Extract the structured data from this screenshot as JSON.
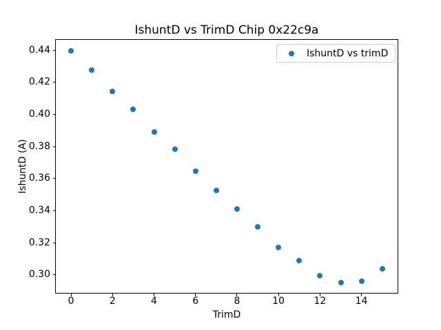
{
  "figure": {
    "background": "#ffffff",
    "text_color": "#000000"
  },
  "chart_data": {
    "type": "scatter",
    "title": "IshuntD vs TrimD Chip 0x22c9a",
    "xlabel": "TrimD",
    "ylabel": "IshuntD (A)",
    "series": [
      {
        "name": "IshuntD vs trimD",
        "marker": "circle",
        "color": "#1f77b4",
        "x": [
          0,
          1,
          2,
          3,
          4,
          5,
          6,
          7,
          8,
          9,
          10,
          11,
          12,
          13,
          14,
          15
        ],
        "y": [
          0.4397,
          0.4277,
          0.4145,
          0.4032,
          0.3891,
          0.3782,
          0.3646,
          0.3525,
          0.3409,
          0.3297,
          0.317,
          0.3087,
          0.2995,
          0.2952,
          0.2961,
          0.3039
        ]
      }
    ],
    "xticks": [
      0,
      2,
      4,
      6,
      8,
      10,
      12,
      14
    ],
    "yticks": [
      0.3,
      0.32,
      0.34,
      0.36,
      0.38,
      0.4,
      0.42,
      0.44
    ],
    "xlim": [
      -0.75,
      15.75
    ],
    "ylim": [
      0.2885,
      0.447
    ],
    "grid": false,
    "legend": {
      "visible": true,
      "position": "upper right",
      "entries": [
        "IshuntD vs trimD"
      ]
    }
  }
}
